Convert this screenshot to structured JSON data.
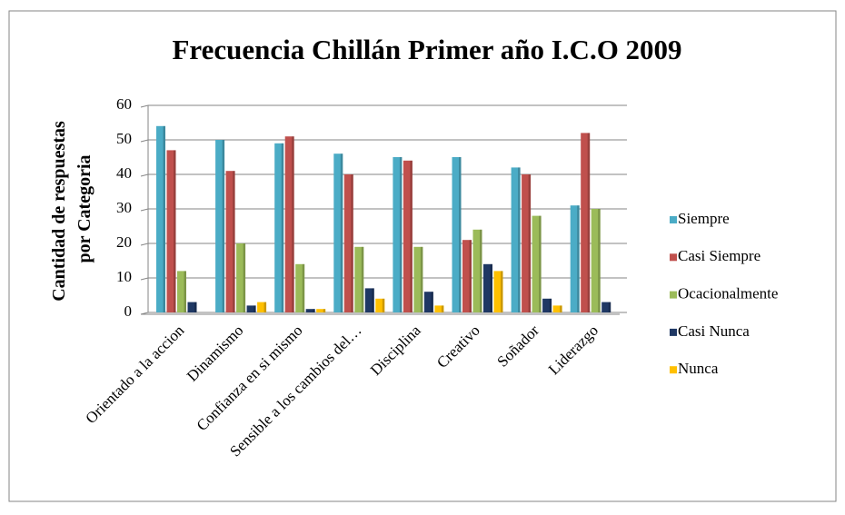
{
  "chart_data": {
    "type": "bar",
    "title": "Frecuencia Chillán  Primer año I.C.O 2009",
    "ylabel": [
      "Cantidad de respuestas",
      "por Categoria"
    ],
    "categories": [
      "Orientado a la accion",
      "Dinamismo",
      "Confianza en si mismo",
      "Sensible a los cambios del…",
      "Disciplina",
      "Creativo",
      "Soñador",
      "Liderazgo"
    ],
    "series": [
      {
        "name": "Siempre",
        "color": "#4bacc6",
        "values": [
          54,
          50,
          49,
          46,
          45,
          45,
          42,
          31
        ]
      },
      {
        "name": "Casi Siempre",
        "color": "#c0504d",
        "values": [
          47,
          41,
          51,
          40,
          44,
          21,
          40,
          52
        ]
      },
      {
        "name": "Ocacionalmente",
        "color": "#9bbb59",
        "values": [
          12,
          20,
          14,
          19,
          19,
          24,
          28,
          30
        ]
      },
      {
        "name": "Casi Nunca",
        "color": "#1f3864",
        "values": [
          3,
          2,
          1,
          7,
          6,
          14,
          4,
          3
        ]
      },
      {
        "name": "Nunca",
        "color": "#ffc000",
        "values": [
          0,
          3,
          1,
          4,
          2,
          12,
          2,
          0
        ]
      }
    ],
    "ylim": [
      0,
      60
    ],
    "yticks": [
      0,
      10,
      20,
      30,
      40,
      50,
      60
    ],
    "grid": true,
    "legend": "right"
  }
}
